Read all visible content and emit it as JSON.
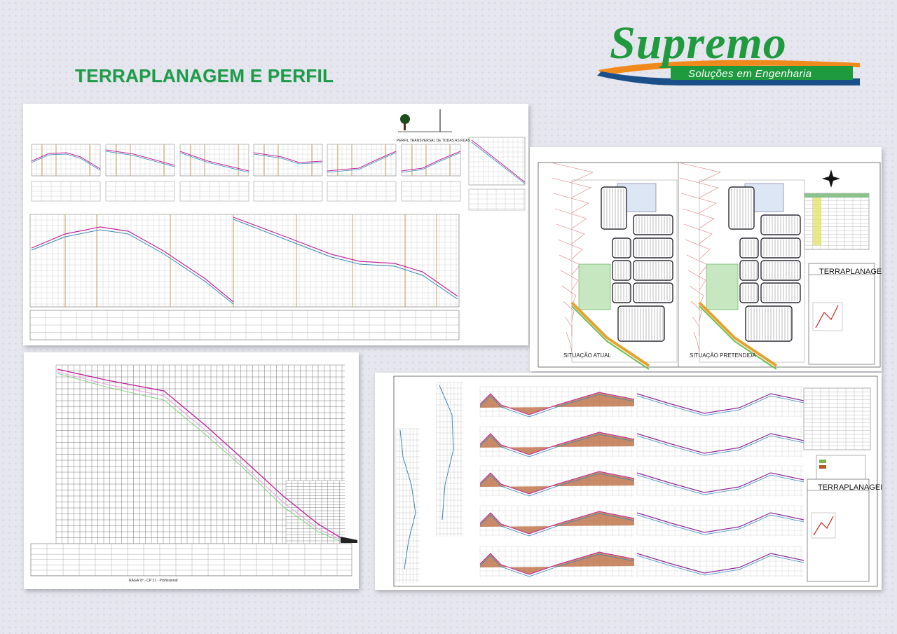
{
  "page": {
    "title": "TERRAPLANAGEM E PERFIL"
  },
  "logo": {
    "name": "Supremo",
    "tagline": "Soluções em Engenharia",
    "colors": {
      "green": "#1f9a3e",
      "orange": "#f08a1c",
      "blue": "#1b4f8a"
    }
  },
  "sheets": {
    "profile_sheet": {
      "caption": "PERFIL TRANSVERSAL DE TODAS AS RUAS"
    },
    "longitudinal_sheet": {
      "caption": "RAGA '8º - CP 21 - Profissional'"
    },
    "site_plan_sheet": {
      "left_label": "SITUAÇÃO ATUAL",
      "right_label": "SITUAÇÃO PRETENDIDA",
      "titleblock": "TERRAPLANAGEM"
    },
    "sections_sheet": {
      "titleblock": "TERRAPLANAGEM"
    }
  }
}
